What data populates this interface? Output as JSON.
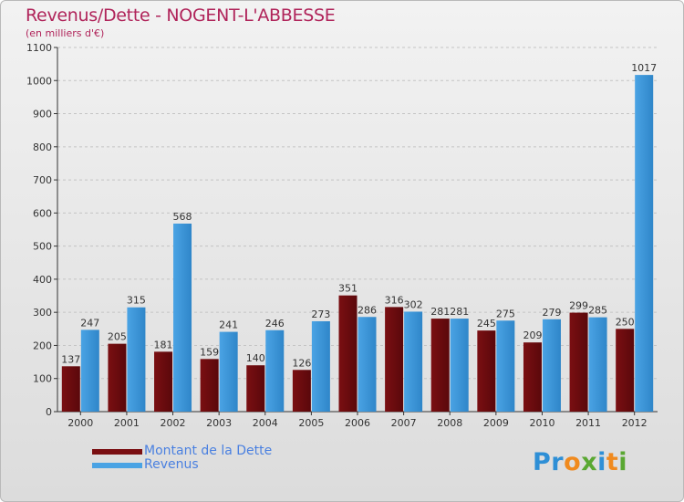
{
  "chart_data": {
    "type": "bar",
    "title": "Revenus/Dette - NOGENT-L'ABBESSE",
    "subtitle": "(en milliers d'€)",
    "categories": [
      "2000",
      "2001",
      "2002",
      "2003",
      "2004",
      "2005",
      "2006",
      "2007",
      "2008",
      "2009",
      "2010",
      "2011",
      "2012"
    ],
    "series": [
      {
        "name": "Montant de la Dette",
        "color": "#7a0f12",
        "values": [
          137,
          205,
          181,
          159,
          140,
          126,
          351,
          316,
          281,
          245,
          209,
          299,
          250
        ]
      },
      {
        "name": "Revenus",
        "color": "#4aa3e4",
        "values": [
          247,
          315,
          568,
          241,
          246,
          273,
          286,
          302,
          281,
          275,
          279,
          285,
          1017
        ]
      }
    ],
    "ylim": [
      0,
      1100
    ],
    "yticks": [
      0,
      100,
      200,
      300,
      400,
      500,
      600,
      700,
      800,
      900,
      1000,
      1100
    ],
    "grid": true,
    "legend": "bottom-left"
  },
  "logo": {
    "letters": [
      "P",
      "r",
      "o",
      "x",
      "i",
      "t",
      "i"
    ],
    "colors": [
      "#2e8fd6",
      "#2e8fd6",
      "#f08a1e",
      "#5aa832",
      "#2e8fd6",
      "#f08a1e",
      "#5aa832"
    ]
  }
}
